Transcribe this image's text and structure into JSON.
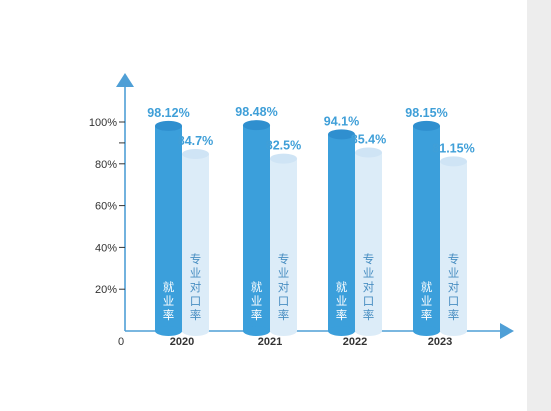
{
  "chart_data": {
    "type": "bar",
    "title": "",
    "xlabel": "",
    "ylabel": "",
    "origin_label": "0",
    "categories": [
      "2020",
      "2021",
      "2022",
      "2023"
    ],
    "ylim": [
      0,
      100
    ],
    "y_ticks": [
      {
        "value": 20,
        "label": "20%"
      },
      {
        "value": 40,
        "label": "40%"
      },
      {
        "value": 60,
        "label": "60%"
      },
      {
        "value": 80,
        "label": "80%"
      },
      {
        "value": 100,
        "label": "100%"
      }
    ],
    "series": [
      {
        "name": "就业率",
        "values": [
          98.12,
          98.48,
          94.1,
          98.15
        ],
        "value_labels": [
          "98.12%",
          "98.48%",
          "94.1%",
          "98.15%"
        ],
        "color": "#3b9fdb",
        "label_color": "#3f9fd8",
        "text_color": "#ffffff"
      },
      {
        "name": "专业对口率",
        "values": [
          84.7,
          82.5,
          85.4,
          81.15
        ],
        "value_labels": [
          "84.7%",
          "82.5%",
          "85.4%",
          "81.15%"
        ],
        "color": "#dcecf8",
        "label_color": "#3f9fd8",
        "text_color": "#4a8fc2"
      }
    ],
    "axis_color": "#4f9fd6",
    "grid": false,
    "legend": "none"
  }
}
